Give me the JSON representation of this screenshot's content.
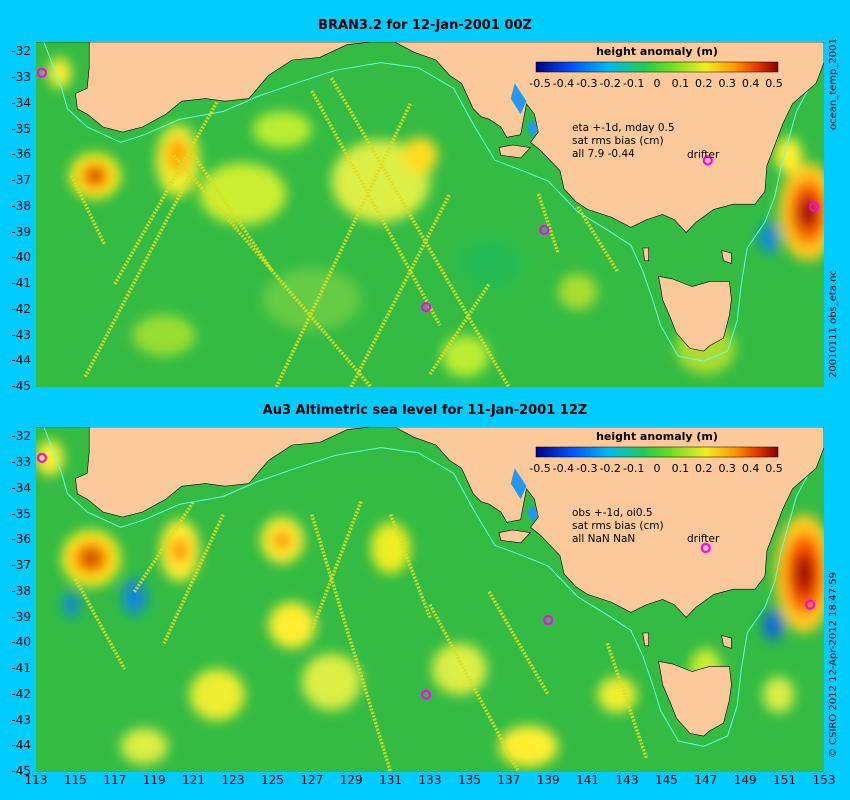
{
  "map_data": {
    "lon_ticks": [
      113,
      115,
      117,
      119,
      121,
      123,
      125,
      127,
      129,
      131,
      133,
      135,
      137,
      139,
      141,
      143,
      145,
      147,
      149,
      151,
      153
    ],
    "lat_ticks": [
      -32,
      -33,
      -34,
      -35,
      -36,
      -37,
      -38,
      -39,
      -40,
      -41,
      -42,
      -43,
      -44,
      -45
    ],
    "extent": {
      "lon": [
        113,
        153
      ],
      "lat": [
        -31.6,
        -45
      ]
    },
    "colorscale": {
      "title": "height anomaly (m)",
      "ticks": [
        "-0.5",
        "-0.4",
        "-0.3",
        "-0.2",
        "-0.1",
        "0",
        "0.1",
        "0.2",
        "0.3",
        "0.4",
        "0.5"
      ],
      "range": [
        -0.5,
        0.5
      ]
    },
    "colors": {
      "background": "#00ccff",
      "land": "#fcc99b",
      "ocean_base": "#33bb44",
      "drifter": "#ff00ff",
      "contour": "#66ffdd"
    }
  },
  "panels": [
    {
      "title": "BRAN3.2 for 12-Jan-2001 00Z",
      "annotation_lines": [
        "eta +-1d, mday 0.5",
        "sat rms bias (cm)",
        "all 7.9 -0.44"
      ],
      "drifter_label": "drifter",
      "side_label": "20010111 obs_eta.nc",
      "side_label_top": "ocean_temp_2001"
    },
    {
      "title": "Au3 Altimetric sea level  for 11-Jan-2001 12Z",
      "annotation_lines": [
        "obs +-1d, oi0.5",
        "sat rms bias (cm)",
        "all NaN NaN"
      ],
      "drifter_label": "drifter",
      "side_label": "© CSIRO 2012  12-Apr-2012 18:47:59"
    }
  ]
}
